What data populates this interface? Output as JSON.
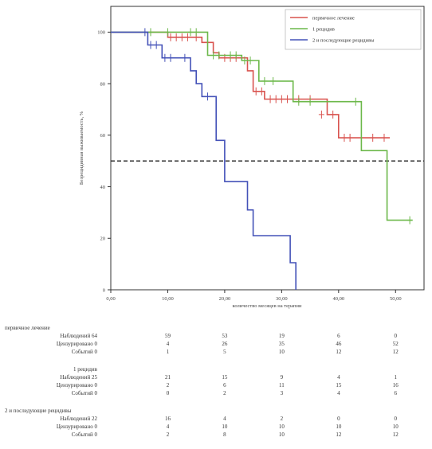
{
  "chart_data": {
    "type": "line",
    "step": true,
    "xlabel": "количество месяцев на терапии",
    "ylabel": "Безрецидивная выживаемость, %",
    "xlim": [
      0,
      55
    ],
    "ylim": [
      0,
      110
    ],
    "x_ticks": [
      "0,00",
      "10,00",
      "20,00",
      "30,00",
      "40,00",
      "50,00"
    ],
    "x_tick_values": [
      0,
      10,
      20,
      30,
      40,
      50
    ],
    "y_ticks": [
      "0",
      "20",
      "40",
      "60",
      "80",
      "100"
    ],
    "y_tick_values": [
      0,
      20,
      40,
      60,
      80,
      100
    ],
    "reference_line": 50,
    "legend_position": "top-right",
    "series": [
      {
        "name": "первичное лечение",
        "color": "#d9534f",
        "points": [
          [
            0,
            100
          ],
          [
            10,
            100
          ],
          [
            10,
            98
          ],
          [
            16,
            98
          ],
          [
            16,
            96
          ],
          [
            18,
            96
          ],
          [
            18,
            92
          ],
          [
            19,
            92
          ],
          [
            19,
            90
          ],
          [
            24,
            90
          ],
          [
            24,
            85
          ],
          [
            25,
            85
          ],
          [
            25,
            77
          ],
          [
            27,
            77
          ],
          [
            27,
            74
          ],
          [
            38,
            74
          ],
          [
            38,
            68
          ],
          [
            40,
            68
          ],
          [
            40,
            59
          ],
          [
            49,
            59
          ]
        ],
        "censored": [
          [
            10.5,
            98
          ],
          [
            11.5,
            98
          ],
          [
            12.5,
            98
          ],
          [
            13.5,
            98
          ],
          [
            15,
            98
          ],
          [
            17,
            96
          ],
          [
            20,
            90
          ],
          [
            21,
            90
          ],
          [
            22,
            90
          ],
          [
            25.5,
            77
          ],
          [
            26.5,
            77
          ],
          [
            28,
            74
          ],
          [
            29,
            74
          ],
          [
            30,
            74
          ],
          [
            31,
            74
          ],
          [
            33,
            74
          ],
          [
            35,
            74
          ],
          [
            37,
            68
          ],
          [
            39,
            68
          ],
          [
            41,
            59
          ],
          [
            42,
            59
          ],
          [
            46,
            59
          ],
          [
            48,
            59
          ]
        ]
      },
      {
        "name": "1 рецидив",
        "color": "#6cb84a",
        "points": [
          [
            0,
            100
          ],
          [
            17,
            100
          ],
          [
            17,
            91
          ],
          [
            23,
            91
          ],
          [
            23,
            89
          ],
          [
            26,
            89
          ],
          [
            26,
            81
          ],
          [
            32,
            81
          ],
          [
            32,
            73
          ],
          [
            44,
            73
          ],
          [
            44,
            54
          ],
          [
            48.5,
            54
          ],
          [
            48.5,
            27
          ],
          [
            53,
            27
          ]
        ],
        "censored": [
          [
            7,
            100
          ],
          [
            10,
            100
          ],
          [
            14,
            100
          ],
          [
            15,
            100
          ],
          [
            18,
            91
          ],
          [
            19,
            91
          ],
          [
            21,
            91
          ],
          [
            22,
            91
          ],
          [
            23.5,
            89
          ],
          [
            24.5,
            89
          ],
          [
            27,
            81
          ],
          [
            28.5,
            81
          ],
          [
            33,
            73
          ],
          [
            35,
            73
          ],
          [
            43,
            73
          ],
          [
            52.5,
            27
          ]
        ]
      },
      {
        "name": "2 и последующие рецидивы",
        "color": "#4452b8",
        "points": [
          [
            0,
            100
          ],
          [
            6.5,
            100
          ],
          [
            6.5,
            95
          ],
          [
            9,
            95
          ],
          [
            9,
            90
          ],
          [
            14,
            90
          ],
          [
            14,
            85
          ],
          [
            15,
            85
          ],
          [
            15,
            80
          ],
          [
            16,
            80
          ],
          [
            16,
            75
          ],
          [
            18.5,
            75
          ],
          [
            18.5,
            58
          ],
          [
            20,
            58
          ],
          [
            20,
            42
          ],
          [
            24,
            42
          ],
          [
            24,
            31
          ],
          [
            25,
            31
          ],
          [
            25,
            21
          ],
          [
            31.5,
            21
          ],
          [
            31.5,
            10.5
          ],
          [
            32.5,
            10.5
          ],
          [
            32.5,
            0
          ]
        ],
        "censored": [
          [
            6,
            100
          ],
          [
            7,
            95
          ],
          [
            8,
            95
          ],
          [
            9.5,
            90
          ],
          [
            10.5,
            90
          ],
          [
            13,
            90
          ],
          [
            17,
            75
          ]
        ]
      }
    ]
  },
  "risk_table": {
    "groups": [
      {
        "title": "первичное лечение",
        "rows": [
          {
            "label": "Наблюдений",
            "total": "64",
            "values": [
              "59",
              "53",
              "19",
              "6",
              "0"
            ]
          },
          {
            "label": "Цензурировано",
            "total": "0",
            "values": [
              "4",
              "26",
              "35",
              "46",
              "52"
            ]
          },
          {
            "label": "Событий",
            "total": "0",
            "values": [
              "1",
              "5",
              "10",
              "12",
              "12"
            ]
          }
        ]
      },
      {
        "title": "1 рецидив",
        "rows": [
          {
            "label": "Наблюдений",
            "total": "25",
            "values": [
              "21",
              "15",
              "9",
              "4",
              "1"
            ]
          },
          {
            "label": "Цензурировано",
            "total": "0",
            "values": [
              "2",
              "6",
              "11",
              "15",
              "16"
            ]
          },
          {
            "label": "Событий",
            "total": "0",
            "values": [
              "0",
              "2",
              "3",
              "4",
              "6"
            ]
          }
        ]
      },
      {
        "title": "2 и последующие рецидивы",
        "rows": [
          {
            "label": "Наблюдений",
            "total": "22",
            "values": [
              "16",
              "4",
              "2",
              "0",
              "0"
            ]
          },
          {
            "label": "Цензурировано",
            "total": "0",
            "values": [
              "4",
              "10",
              "10",
              "10",
              "10"
            ]
          },
          {
            "label": "Событий",
            "total": "0",
            "values": [
              "2",
              "8",
              "10",
              "12",
              "12"
            ]
          }
        ]
      }
    ]
  }
}
